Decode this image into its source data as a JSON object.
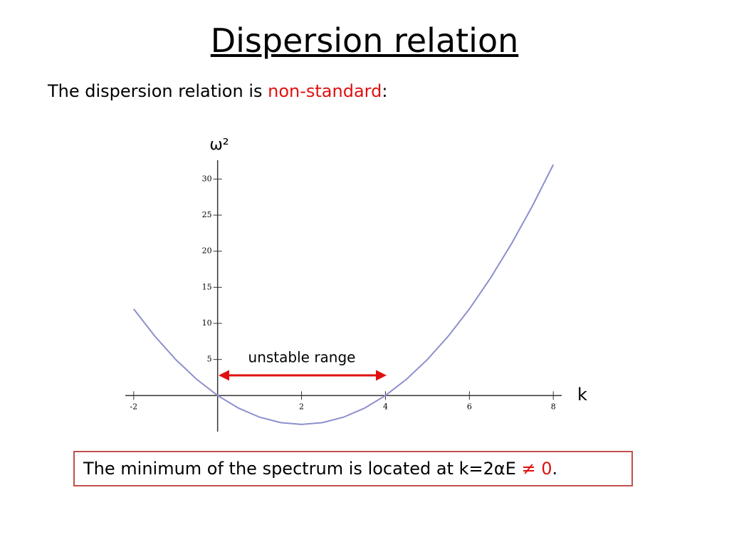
{
  "slide": {
    "title": "Dispersion relation",
    "lead": [
      "The dispersion relation is ",
      "non-standard",
      ":"
    ],
    "note": [
      "The minimum of the spectrum is located at k=2αE  ",
      "≠ 0",
      "."
    ]
  },
  "chart_data": {
    "type": "line",
    "x_label": "k",
    "y_label": "ω²",
    "annotation": "unstable range",
    "x": [
      -2,
      -1.5,
      -1,
      -0.5,
      0,
      0.5,
      1,
      1.5,
      2,
      2.5,
      3,
      3.5,
      4,
      4.5,
      5,
      5.5,
      6,
      6.5,
      7,
      7.5,
      8
    ],
    "series": [
      {
        "color": "#8d8fce",
        "values": [
          12,
          8.25,
          5,
          2.25,
          0,
          -1.75,
          -3,
          -3.75,
          -4,
          -3.75,
          -3,
          -1.75,
          0,
          2.25,
          5,
          8.25,
          12,
          16.25,
          21,
          26.25,
          32
        ]
      }
    ],
    "xlim": [
      -2.2,
      8.2
    ],
    "ylim": [
      -5,
      33
    ],
    "xticks": [
      -2,
      2,
      4,
      6,
      8
    ],
    "yticks": [
      5,
      10,
      15,
      20,
      25,
      30
    ]
  }
}
